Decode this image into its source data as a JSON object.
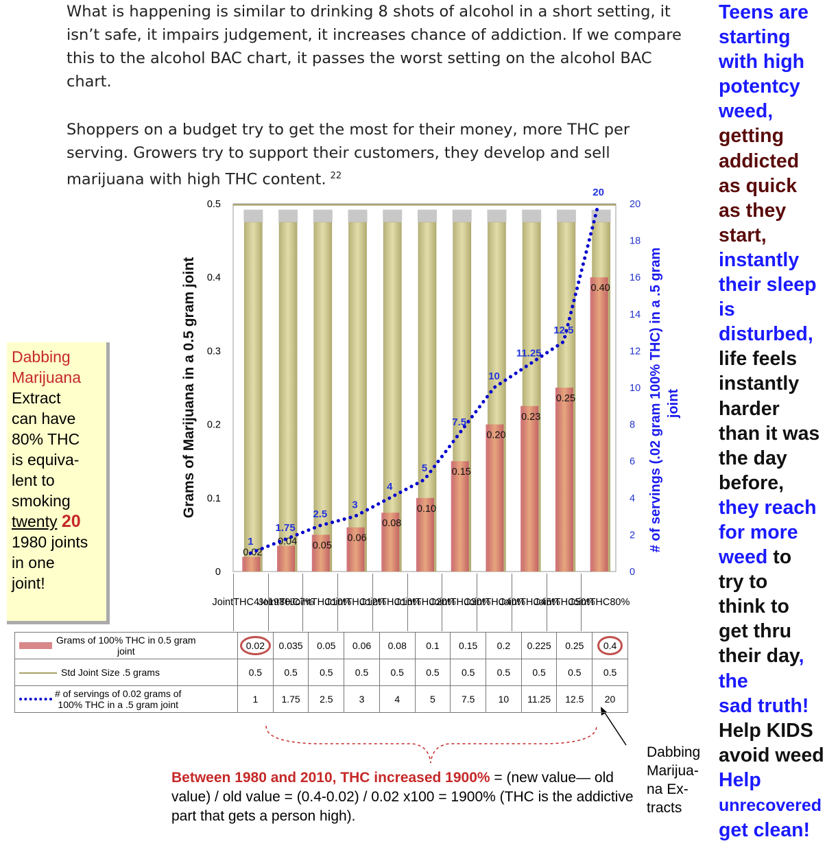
{
  "intro": {
    "p1": "What is happening is similar to drinking 8 shots of alcohol in a short setting, it isn’t safe, it impairs judgement, it increases chance of addiction. If we compare this to the alcohol BAC chart, it passes the worst setting on the alcohol BAC chart.",
    "p2": "Shoppers on a budget try to get the most for their money, more THC per serving.  Growers try to support their customers, they develop and sell marijuana with high THC content.",
    "p2_ref": "22"
  },
  "sidebar": {
    "lines": [
      {
        "text": "Teens are",
        "color": "#1a1aff"
      },
      {
        "text": "starting",
        "color": "#1a1aff"
      },
      {
        "text": "with high",
        "color": "#1a1aff"
      },
      {
        "text": "potentcy",
        "color": "#1a1aff"
      },
      {
        "text": "weed,",
        "color": "#1a1aff"
      },
      {
        "text": "getting",
        "color": "#5a0a0a"
      },
      {
        "text": "addicted",
        "color": "#5a0a0a"
      },
      {
        "text": "as quick",
        "color": "#5a0a0a"
      },
      {
        "text": "as they",
        "color": "#5a0a0a"
      },
      {
        "text": "start,",
        "color": "#5a0a0a"
      },
      {
        "text": "instantly",
        "color": "#1a1aff"
      },
      {
        "text": "their sleep",
        "color": "#1a1aff"
      },
      {
        "text": "is",
        "color": "#1a1aff"
      },
      {
        "text": "disturbed,",
        "color": "#1a1aff"
      },
      {
        "text": "life feels",
        "color": "#111111"
      },
      {
        "text": "instantly",
        "color": "#111111"
      },
      {
        "text": "harder",
        "color": "#111111"
      },
      {
        "text": "than it was",
        "color": "#111111"
      },
      {
        "text": "the day",
        "color": "#111111"
      },
      {
        "text": "before,",
        "color": "#111111"
      },
      {
        "text": "they reach",
        "color": "#1a1aff"
      },
      {
        "text": "for more",
        "color": "#1a1aff"
      },
      {
        "text": "weed",
        "color": "#1a1aff",
        "rest": " to",
        "rest_color": "#111111"
      },
      {
        "text": "try to",
        "color": "#111111"
      },
      {
        "text": "think to",
        "color": "#111111"
      },
      {
        "text": "get thru",
        "color": "#111111"
      },
      {
        "text": "their day",
        "color": "#111111",
        "rest": ",",
        "rest_color": "#1a1aff"
      },
      {
        "text": "the",
        "color": "#1a1aff"
      },
      {
        "text": "sad truth!",
        "color": "#1a1aff"
      },
      {
        "text": "Help KIDS",
        "color": "#111111"
      },
      {
        "text": "avoid weed",
        "color": "#111111"
      },
      {
        "text": "Help",
        "color": "#1a1aff"
      },
      {
        "text": "unrecovered",
        "color": "#1a1aff",
        "small": true
      },
      {
        "text": "get clean!",
        "color": "#1a1aff"
      }
    ]
  },
  "callout": {
    "l1": "Dabbing",
    "l2": "Marijuana",
    "l3": "Extract",
    "l4": "can have",
    "l5": "80% THC",
    "l6": "is equiva-",
    "l7": "lent to",
    "l8": "smoking",
    "l9a": "twenty",
    "l9b": "20",
    "l10": "1980 joints",
    "l11": "in one",
    "l12": "joint!"
  },
  "bottom_note": {
    "highlight": "Between 1980 and 2010, THC increased 1900%",
    "rest": " = (new value— old value) / old value = (0.4-0.02) / 0.02 x100 = 1900% (THC is the addictive part that gets a person high)."
  },
  "dab_note": {
    "l1": "Dabbing",
    "l2": "Marijua-",
    "l3": "na Ex-",
    "l4": "tracts"
  },
  "chart_data": {
    "type": "bar",
    "ylabel": "Grams of Marijuana in a 0.5 gram joint",
    "y2label_line1": "# of servings (.02 gram 100% THC) in a .5 gram",
    "y2label_line2": "joint",
    "ylim": [
      0,
      0.5
    ],
    "y2lim": [
      0,
      20
    ],
    "y_ticks": [
      "0",
      "0.1",
      "0.2",
      "0.3",
      "0.4",
      "0.5"
    ],
    "y2_ticks": [
      "0",
      "2",
      "4",
      "6",
      "8",
      "10",
      "12",
      "14",
      "16",
      "18",
      "20"
    ],
    "categories": [
      [
        "Joint",
        "THC",
        "4%",
        "1980"
      ],
      [
        "Joint",
        "THC",
        "7%"
      ],
      [
        "Joint",
        "THC",
        "10%"
      ],
      [
        "Joint",
        "THC",
        "12%"
      ],
      [
        "Joint",
        "THC",
        "16%"
      ],
      [
        "Joint",
        "THC",
        "20%"
      ],
      [
        "Joint",
        "THC",
        "30%"
      ],
      [
        "Joint",
        "THC",
        "40%"
      ],
      [
        "Joint",
        "THC",
        "45%"
      ],
      [
        "Joint",
        "THC",
        "50%"
      ],
      [
        "Joint",
        "THC",
        "80%"
      ]
    ],
    "series": [
      {
        "name": "Grams of 100% THC in 0.5 gram joint",
        "kind": "bar",
        "color": "#d9888a",
        "values": [
          0.02,
          0.035,
          0.05,
          0.06,
          0.08,
          0.1,
          0.15,
          0.2,
          0.225,
          0.25,
          0.4
        ],
        "table_values": [
          "0.02",
          "0.035",
          "0.05",
          "0.06",
          "0.08",
          "0.1",
          "0.15",
          "0.2",
          "0.225",
          "0.25",
          "0.4"
        ],
        "bar_labels": [
          "0.02",
          "0.04",
          "0.05",
          "0.06",
          "0.08",
          "0.10",
          "0.15",
          "0.20",
          "0.23",
          "0.25",
          "0.40"
        ]
      },
      {
        "name": "Std Joint Size .5 grams",
        "kind": "bar-background",
        "color": "#c9c38a",
        "values": [
          0.5,
          0.5,
          0.5,
          0.5,
          0.5,
          0.5,
          0.5,
          0.5,
          0.5,
          0.5,
          0.5
        ],
        "table_values": [
          "0.5",
          "0.5",
          "0.5",
          "0.5",
          "0.5",
          "0.5",
          "0.5",
          "0.5",
          "0.5",
          "0.5",
          "0.5"
        ]
      },
      {
        "name": "# of servings of 0.02 grams of 100% THC in a .5 gram joint",
        "kind": "line",
        "axis": "right",
        "color": "#0000cc",
        "values": [
          1,
          1.75,
          2.5,
          3,
          4,
          5,
          7.5,
          10,
          11.25,
          12.5,
          20
        ],
        "table_values": [
          "1",
          "1.75",
          "2.5",
          "3",
          "4",
          "5",
          "7.5",
          "10",
          "11.25",
          "12.5",
          "20"
        ]
      }
    ],
    "legend_labels": {
      "bars_l1": "Grams of 100% THC in 0.5 gram",
      "bars_l2": "joint",
      "std": "Std Joint Size .5 grams",
      "line_l1": "# of servings of 0.02 grams of",
      "line_l2": "100% THC in a .5 gram joint"
    }
  }
}
